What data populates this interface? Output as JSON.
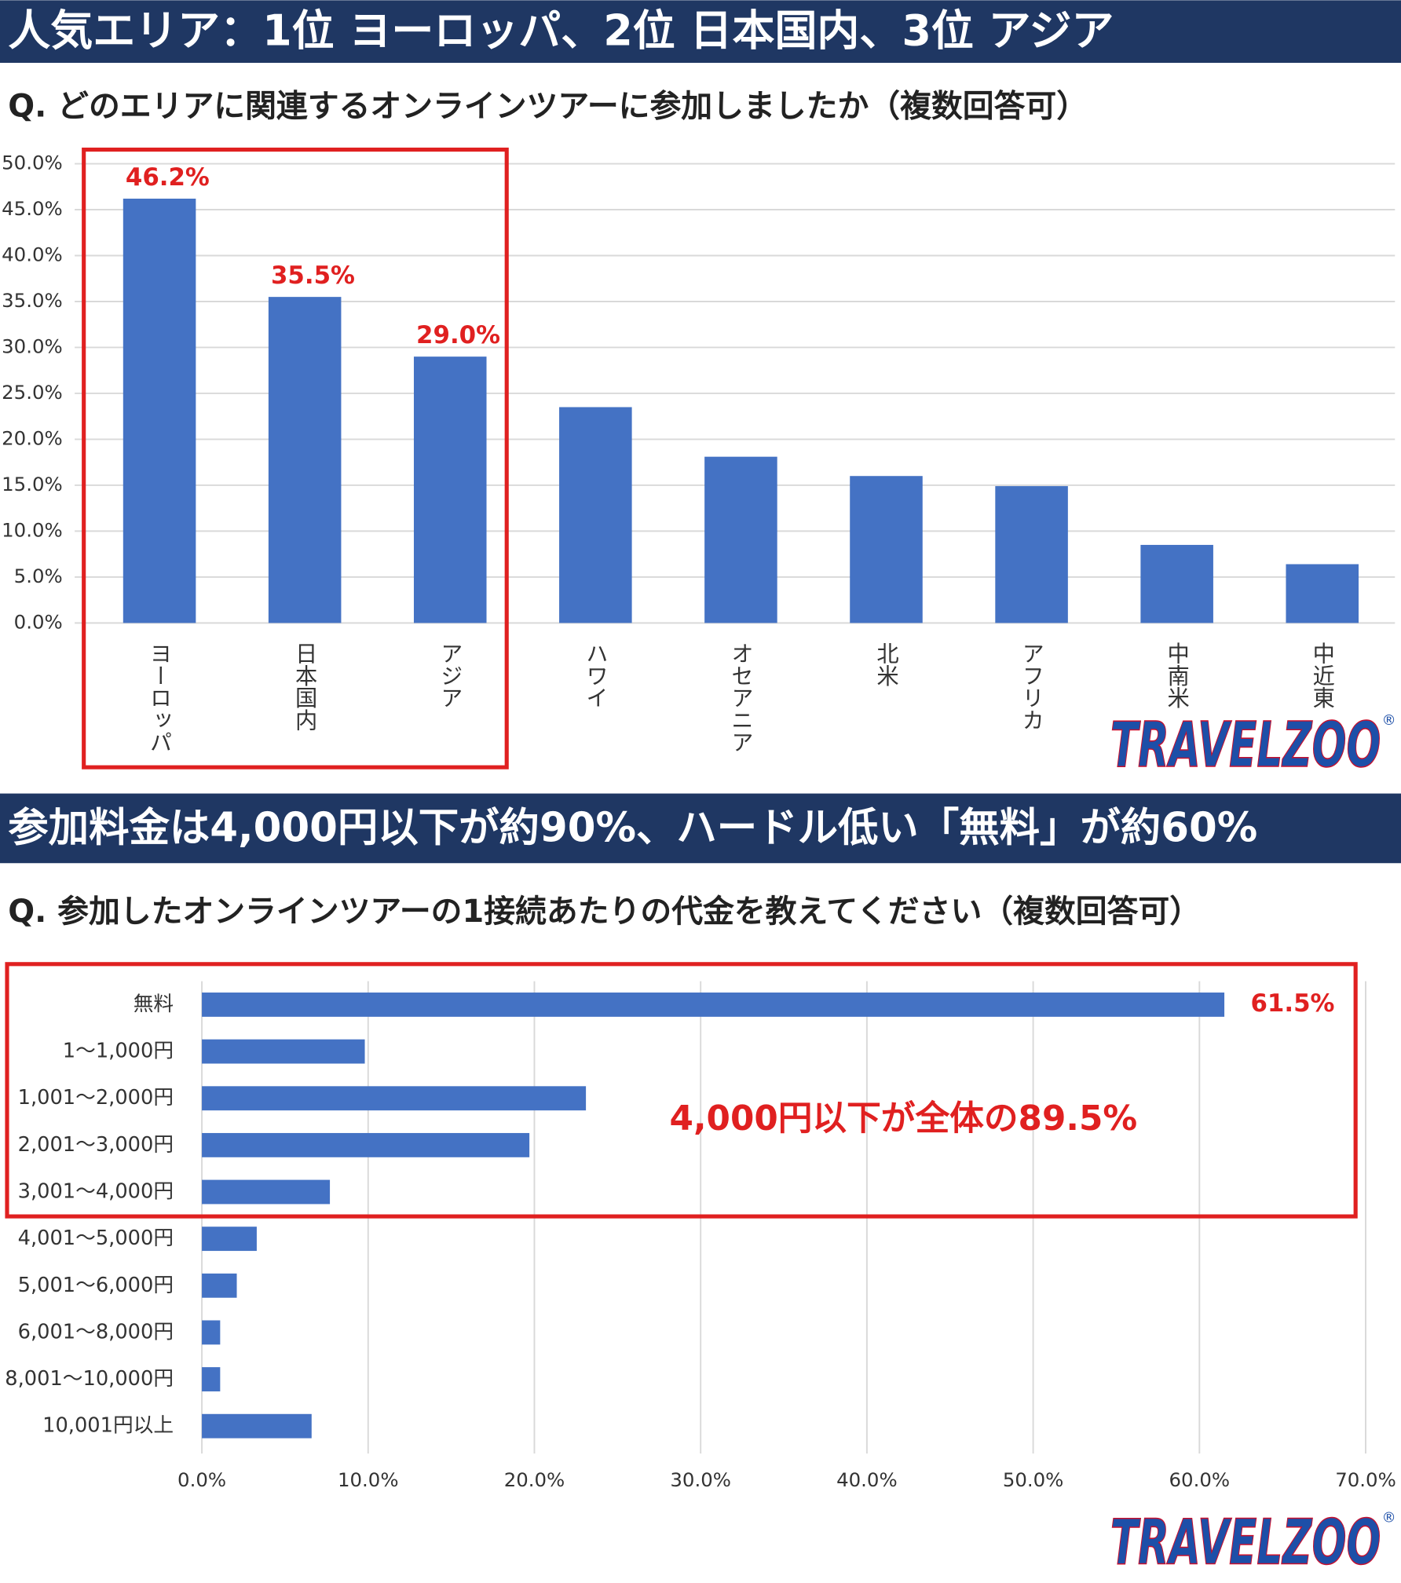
{
  "logo": "TRAVELZOO",
  "logo_mark": "®",
  "chart_data": [
    {
      "type": "bar",
      "title": "人気エリア：1位 ヨーロッパ、2位 日本国内、3位 アジア",
      "subtitle": "Q. どのエリアに関連するオンラインツアーに参加しましたか（複数回答可）",
      "categories": [
        "ヨーロッパ",
        "日本国内",
        "アジア",
        "ハワイ",
        "オセアニア",
        "北米",
        "アフリカ",
        "中南米",
        "中近東"
      ],
      "values": [
        46.2,
        35.5,
        29.0,
        23.5,
        18.1,
        16.0,
        14.9,
        8.5,
        6.4
      ],
      "value_labels": [
        "46.2%",
        "35.5%",
        "29.0%",
        null,
        null,
        null,
        null,
        null,
        null
      ],
      "color": "#4472c4",
      "label_color": "#e02020",
      "ylim": [
        0,
        50
      ],
      "yticks": [
        {
          "value": 0,
          "label": "0.0%"
        },
        {
          "value": 5,
          "label": "5.0%"
        },
        {
          "value": 10,
          "label": "10.0%"
        },
        {
          "value": 15,
          "label": "15.0%"
        },
        {
          "value": 20,
          "label": "20.0%"
        },
        {
          "value": 25,
          "label": "25.0%"
        },
        {
          "value": 30,
          "label": "30.0%"
        },
        {
          "value": 35,
          "label": "35.0%"
        },
        {
          "value": 40,
          "label": "40.0%"
        },
        {
          "value": 45,
          "label": "45.0%"
        },
        {
          "value": 50,
          "label": "50.0%"
        }
      ],
      "grid": true
    },
    {
      "type": "barh",
      "title": "参加料金は4,000円以下が約90%、ハードル低い「無料」が約60%",
      "subtitle": "Q. 参加したオンラインツアーの1接続あたりの代金を教えてください（複数回答可）",
      "annotation": "4,000円以下が全体の89.5%",
      "categories": [
        "無料",
        "1〜1,000円",
        "1,001〜2,000円",
        "2,001〜3,000円",
        "3,001〜4,000円",
        "4,001〜5,000円",
        "5,001〜6,000円",
        "6,001〜8,000円",
        "8,001〜10,000円",
        "10,001円以上"
      ],
      "values": [
        61.5,
        9.8,
        23.1,
        19.7,
        7.7,
        3.3,
        2.1,
        1.1,
        1.1,
        6.6
      ],
      "value_labels": [
        "61.5%",
        null,
        null,
        null,
        null,
        null,
        null,
        null,
        null,
        null
      ],
      "color": "#4472c4",
      "label_color": "#e02020",
      "xlim": [
        0,
        70
      ],
      "xticks": [
        {
          "value": 0,
          "label": "0.0%"
        },
        {
          "value": 10,
          "label": "10.0%"
        },
        {
          "value": 20,
          "label": "20.0%"
        },
        {
          "value": 30,
          "label": "30.0%"
        },
        {
          "value": 40,
          "label": "40.0%"
        },
        {
          "value": 50,
          "label": "50.0%"
        },
        {
          "value": 60,
          "label": "60.0%"
        },
        {
          "value": 70,
          "label": "70.0%"
        }
      ],
      "grid": true
    }
  ]
}
